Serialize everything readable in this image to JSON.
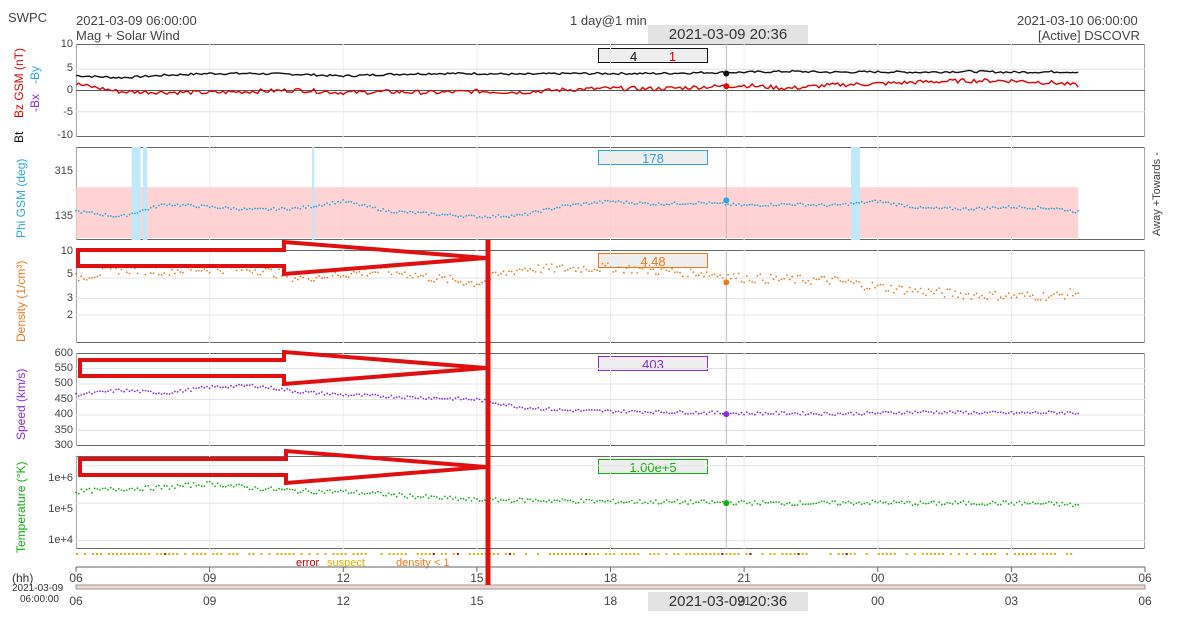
{
  "header": {
    "brand": "SWPC",
    "start_time": "2021-03-09 06:00:00",
    "subtitle": "Mag + Solar Wind",
    "resolution": "1 day@1 min",
    "cursor_time": "2021-03-09 20:36",
    "end_time": "2021-03-10 06:00:00",
    "source": "[Active] DSCOVR"
  },
  "colors": {
    "bt": "#111111",
    "bz": "#e00000",
    "bx": "#8a2be2",
    "by": "#2aa6e0",
    "density": "#f07a1a",
    "speed": "#8a2be2",
    "temperature": "#10b010",
    "error": "#c00000",
    "suspect": "#e0b000",
    "density_lt1": "#f07a1a",
    "arrow": "#e01010"
  },
  "panels": {
    "mag": {
      "label_bz": "Bz GSM (nT)",
      "label_bt": "Bt",
      "label_bx": "-Bx",
      "label_by": "-By",
      "ticks": [
        "10",
        "5",
        "0",
        "-5",
        "-10"
      ],
      "readout_bt": "4",
      "readout_bz": "1"
    },
    "phi": {
      "label": "Phi GSM (deg)",
      "ticks": [
        "315",
        "135"
      ],
      "readout": "178",
      "side_label": "Away +Towards -"
    },
    "density": {
      "label": "Density (1/cm³)",
      "ticks": [
        "10",
        "5",
        "3",
        "2"
      ],
      "readout": "4.48"
    },
    "speed": {
      "label": "Speed (km/s)",
      "ticks": [
        "600",
        "550",
        "500",
        "450",
        "400",
        "350",
        "300"
      ],
      "readout": "403"
    },
    "temperature": {
      "label": "Temperature (°K)",
      "ticks": [
        "1e+6",
        "1e+5",
        "1e+4"
      ],
      "readout": "1.00e+5"
    }
  },
  "legend": {
    "error": "error",
    "suspect": "suspect",
    "density_lt1": "density < 1"
  },
  "xaxis": {
    "unit": "(hh)",
    "date_line1": "2021-03-09",
    "date_line2": "06:00:00",
    "ticks": [
      "06",
      "09",
      "12",
      "15",
      "18",
      "21",
      "00",
      "03",
      "06"
    ]
  },
  "chart_data": [
    {
      "type": "line",
      "title": "",
      "ylabel": "Bz GSM (nT)",
      "ylim": [
        -10,
        10
      ],
      "x_hours": [
        0,
        1,
        2,
        3,
        4,
        5,
        6,
        7,
        8,
        9,
        10,
        11,
        12,
        13,
        14,
        15,
        16,
        17,
        18,
        19,
        20,
        21,
        22,
        23
      ],
      "series": [
        {
          "name": "Bt",
          "values": [
            3.5,
            3,
            3.6,
            4,
            4,
            3.8,
            3.4,
            3.8,
            4,
            4,
            3.8,
            4,
            4,
            4,
            4.2,
            4.3,
            4.5,
            4.3,
            4.4,
            4.3,
            4.5,
            4.3,
            4.4,
            4.3
          ]
        },
        {
          "name": "Bz GSM",
          "values": [
            1.5,
            -0.3,
            -0.4,
            -0.5,
            -0.2,
            0.1,
            -0.5,
            -0.3,
            -0.5,
            -0.2,
            -0.4,
            0.2,
            0.5,
            0.4,
            0.8,
            1.2,
            0.5,
            1.3,
            1.6,
            2,
            2.3,
            2.3,
            1.8,
            0.5
          ]
        }
      ],
      "readouts": {
        "Bt": 4,
        "Bz": 1
      },
      "cursor_hour": 14.6
    },
    {
      "type": "line",
      "title": "",
      "ylabel": "Phi GSM (deg)",
      "ylim": [
        45,
        360
      ],
      "x_hours": [
        0,
        1,
        2,
        3,
        4,
        5,
        6,
        7,
        8,
        9,
        10,
        11,
        12,
        13,
        14,
        15,
        16,
        17,
        18,
        19,
        20,
        21,
        22,
        23
      ],
      "series": [
        {
          "name": "Phi GSM",
          "values": [
            140,
            120,
            165,
            155,
            145,
            150,
            175,
            140,
            130,
            120,
            125,
            160,
            175,
            165,
            170,
            160,
            165,
            160,
            175,
            150,
            148,
            155,
            150,
            125
          ]
        }
      ],
      "readout": 178,
      "cursor_hour": 14.6
    },
    {
      "type": "scatter",
      "title": "",
      "ylabel": "Density (1/cm³)",
      "ylim": [
        1,
        10
      ],
      "scale": "log",
      "x_hours": [
        0,
        1,
        2,
        3,
        4,
        5,
        6,
        7,
        8,
        9,
        10,
        11,
        12,
        13,
        14,
        15,
        16,
        17,
        18,
        19,
        20,
        21,
        22,
        23
      ],
      "series": [
        {
          "name": "Density",
          "values": [
            5,
            6.2,
            6,
            6.3,
            6.2,
            5,
            5.5,
            6,
            5,
            4.4,
            6.3,
            6.3,
            6.5,
            6,
            5.7,
            5,
            4.8,
            4.7,
            4,
            3.6,
            3.3,
            3.2,
            3.2,
            3.8
          ]
        }
      ],
      "readout": 4.48,
      "cursor_hour": 14.6
    },
    {
      "type": "scatter",
      "title": "",
      "ylabel": "Speed (km/s)",
      "ylim": [
        300,
        600
      ],
      "x_hours": [
        0,
        1,
        2,
        3,
        4,
        5,
        6,
        7,
        8,
        9,
        10,
        11,
        12,
        13,
        14,
        15,
        16,
        17,
        18,
        19,
        20,
        21,
        22,
        23
      ],
      "series": [
        {
          "name": "Speed",
          "values": [
            465,
            480,
            470,
            490,
            495,
            475,
            465,
            460,
            455,
            450,
            425,
            415,
            412,
            410,
            408,
            405,
            406,
            404,
            406,
            410,
            408,
            406,
            408,
            405
          ]
        }
      ],
      "readout": 403,
      "cursor_hour": 14.6
    },
    {
      "type": "scatter",
      "title": "",
      "ylabel": "Temperature (°K)",
      "ylim": [
        5000,
        2000000
      ],
      "scale": "log",
      "x_hours": [
        0,
        1,
        2,
        3,
        4,
        5,
        6,
        7,
        8,
        9,
        10,
        11,
        12,
        13,
        14,
        15,
        16,
        17,
        18,
        19,
        20,
        21,
        22,
        23
      ],
      "series": [
        {
          "name": "Temperature",
          "values": [
            200000,
            240000,
            260000,
            330000,
            250000,
            210000,
            200000,
            170000,
            140000,
            120000,
            120000,
            115000,
            110000,
            108000,
            105000,
            102000,
            100000,
            100000,
            105000,
            98000,
            100000,
            100000,
            95000,
            80000
          ]
        }
      ],
      "readout": "1.00e+5",
      "cursor_hour": 14.6
    }
  ]
}
